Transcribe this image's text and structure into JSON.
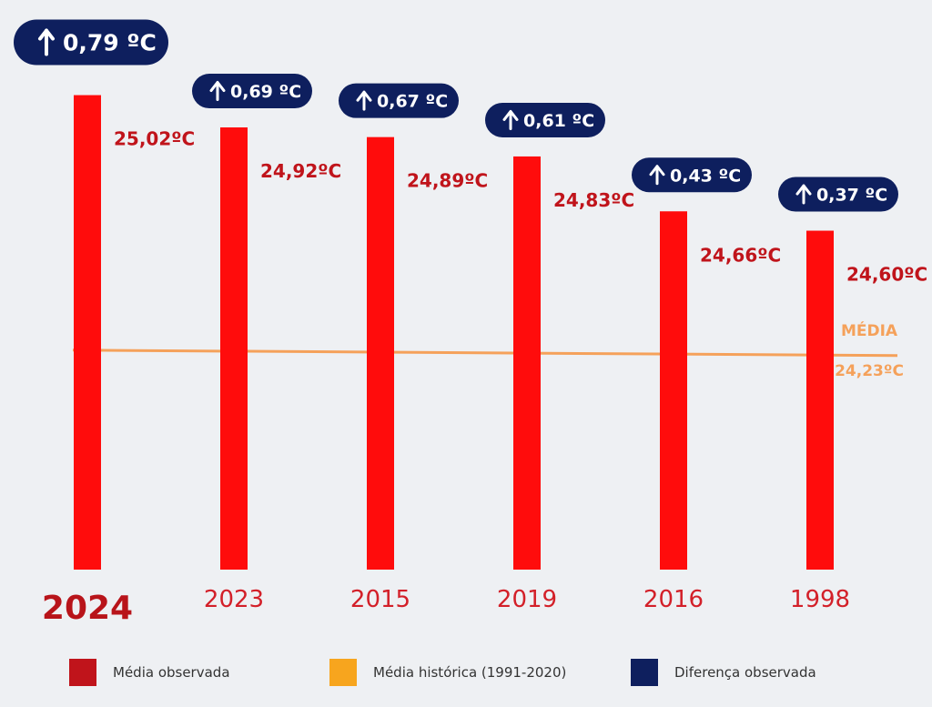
{
  "chart_data": {
    "type": "bar",
    "categories": [
      "2024",
      "2023",
      "2015",
      "2019",
      "2016",
      "1998"
    ],
    "values": [
      25.02,
      24.92,
      24.89,
      24.83,
      24.66,
      24.6
    ],
    "value_labels": [
      "25,02ºC",
      "24,92ºC",
      "24,89ºC",
      "24,83ºC",
      "24,66ºC",
      "24,60ºC"
    ],
    "differences": [
      0.79,
      0.69,
      0.67,
      0.61,
      0.43,
      0.37
    ],
    "difference_labels": [
      "0,79 ºC",
      "0,69 ºC",
      "0,67 ºC",
      "0,61 ºC",
      "0,43 ºC",
      "0,37 ºC"
    ],
    "reference_line": {
      "label": "MÉDIA",
      "value": 24.23,
      "value_label": "24,23ºC"
    },
    "ylim": [
      23.55,
      25.03
    ],
    "grid": false,
    "legend_position": "bottom",
    "highlighted_category": "2024"
  },
  "legend": [
    {
      "label": "Média observada",
      "color": "#c0141b"
    },
    {
      "label": "Média histórica (1991-2020)",
      "color": "#f7a51e"
    },
    {
      "label": "Diferença observada",
      "color": "#0e1f5e"
    }
  ],
  "colors": {
    "bar": "#ff0c0c",
    "value_text": "#c0141b",
    "year_text": "#d32029",
    "badge": "#0e1f5e",
    "reference": "#f5a15a"
  }
}
